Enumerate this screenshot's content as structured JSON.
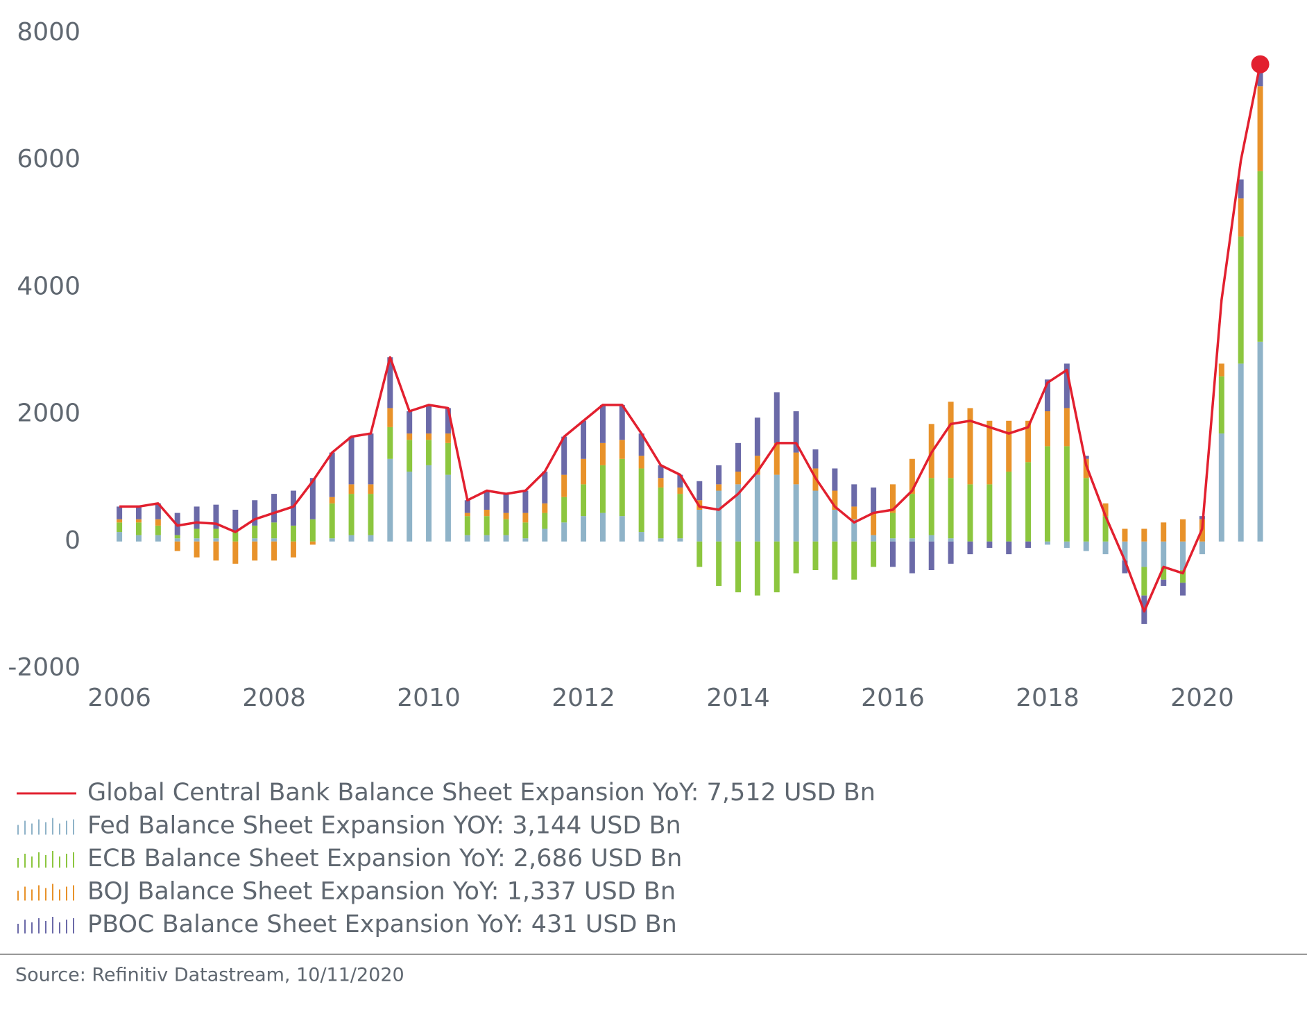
{
  "chart_data": {
    "type": "bar",
    "stacked": true,
    "source": "Source: Refinitiv Datastream, 10/11/2020",
    "x": [
      2006.0,
      2006.25,
      2006.5,
      2006.75,
      2007.0,
      2007.25,
      2007.5,
      2007.75,
      2008.0,
      2008.25,
      2008.5,
      2008.75,
      2009.0,
      2009.25,
      2009.5,
      2009.75,
      2010.0,
      2010.25,
      2010.5,
      2010.75,
      2011.0,
      2011.25,
      2011.5,
      2011.75,
      2012.0,
      2012.25,
      2012.5,
      2012.75,
      2013.0,
      2013.25,
      2013.5,
      2013.75,
      2014.0,
      2014.25,
      2014.5,
      2014.75,
      2015.0,
      2015.25,
      2015.5,
      2015.75,
      2016.0,
      2016.25,
      2016.5,
      2016.75,
      2017.0,
      2017.25,
      2017.5,
      2017.75,
      2018.0,
      2018.25,
      2018.5,
      2018.75,
      2019.0,
      2019.25,
      2019.5,
      2019.75,
      2020.0,
      2020.25,
      2020.5,
      2020.75
    ],
    "xlim": [
      2005.73,
      2021.05
    ],
    "xticks": [
      2006,
      2008,
      2010,
      2012,
      2014,
      2016,
      2018,
      2020
    ],
    "ylim": [
      -2000,
      8000
    ],
    "yticks": [
      -2000,
      0,
      2000,
      4000,
      6000,
      8000
    ],
    "series": [
      {
        "name": "Global Central Bank Balance Sheet Expansion YoY: 7,512 USD Bn",
        "type": "line",
        "color": "#e2202f",
        "values": [
          550,
          550,
          600,
          250,
          300,
          280,
          150,
          350,
          450,
          550,
          950,
          1400,
          1650,
          1700,
          2900,
          2050,
          2150,
          2100,
          650,
          800,
          750,
          800,
          1100,
          1650,
          1900,
          2150,
          2150,
          1700,
          1200,
          1050,
          550,
          500,
          750,
          1100,
          1550,
          1550,
          1000,
          550,
          300,
          450,
          500,
          800,
          1400,
          1850,
          1900,
          1800,
          1700,
          1800,
          2500,
          2700,
          1200,
          400,
          -300,
          -1100,
          -400,
          -500,
          200,
          3800,
          6000,
          7512
        ]
      },
      {
        "name": "Fed Balance Sheet Expansion YOY: 3,144 USD Bn",
        "type": "bar",
        "color": "#8fb3c8",
        "values": [
          150,
          100,
          100,
          50,
          50,
          50,
          0,
          50,
          50,
          0,
          0,
          50,
          100,
          100,
          1300,
          1100,
          1200,
          1050,
          100,
          100,
          100,
          50,
          200,
          300,
          400,
          450,
          400,
          150,
          50,
          50,
          500,
          800,
          900,
          1050,
          1050,
          900,
          800,
          500,
          350,
          100,
          50,
          50,
          100,
          50,
          0,
          0,
          0,
          0,
          -50,
          -100,
          -150,
          -200,
          -300,
          -400,
          -400,
          -450,
          -200,
          1700,
          2800,
          3144
        ]
      },
      {
        "name": "ECB Balance Sheet Expansion YoY: 2,686 USD Bn",
        "type": "bar",
        "color": "#8cc63f",
        "values": [
          150,
          200,
          150,
          50,
          150,
          150,
          150,
          200,
          250,
          250,
          350,
          550,
          650,
          650,
          500,
          500,
          400,
          500,
          300,
          300,
          250,
          250,
          250,
          400,
          500,
          750,
          900,
          1000,
          800,
          700,
          -400,
          -700,
          -800,
          -850,
          -800,
          -500,
          -450,
          -600,
          -600,
          -400,
          400,
          700,
          900,
          950,
          900,
          900,
          1100,
          1250,
          1500,
          1500,
          1000,
          400,
          0,
          -450,
          -200,
          -200,
          0,
          900,
          2000,
          2686
        ]
      },
      {
        "name": "BOJ Balance Sheet Expansion YoY: 1,337 USD Bn",
        "type": "bar",
        "color": "#e8922a",
        "values": [
          50,
          50,
          100,
          -150,
          -250,
          -300,
          -350,
          -300,
          -300,
          -250,
          -50,
          100,
          150,
          150,
          300,
          100,
          100,
          150,
          50,
          100,
          100,
          150,
          150,
          350,
          400,
          350,
          300,
          200,
          150,
          100,
          150,
          100,
          200,
          300,
          500,
          500,
          350,
          300,
          200,
          350,
          450,
          550,
          850,
          1200,
          1200,
          1000,
          800,
          650,
          550,
          600,
          300,
          200,
          200,
          200,
          300,
          350,
          350,
          200,
          600,
          1337
        ]
      },
      {
        "name": "PBOC Balance Sheet Expansion YoY: 431 USD Bn",
        "type": "bar",
        "color": "#6b6aa8",
        "values": [
          200,
          200,
          250,
          350,
          350,
          380,
          350,
          400,
          450,
          550,
          650,
          700,
          750,
          800,
          800,
          350,
          450,
          400,
          200,
          300,
          300,
          350,
          500,
          600,
          600,
          600,
          550,
          350,
          200,
          200,
          300,
          300,
          450,
          600,
          800,
          650,
          300,
          350,
          350,
          400,
          -400,
          -500,
          -450,
          -350,
          -200,
          -100,
          -200,
          -100,
          500,
          700,
          50,
          0,
          -200,
          -450,
          -100,
          -200,
          50,
          0,
          300,
          431
        ]
      }
    ]
  }
}
